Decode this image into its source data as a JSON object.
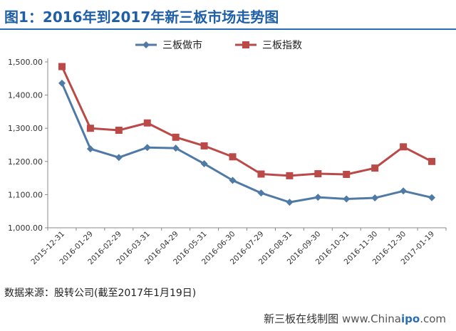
{
  "title": "图1：2016年到2017年新三板市场走势图",
  "source": "数据来源：股转公司(截至2017年1月19日)",
  "footer": {
    "label": "新三板在线制图",
    "domain_prefix": "www.China",
    "domain_bold": "ipo",
    "domain_suffix": ".com"
  },
  "colors": {
    "series_1": "#4f7aa6",
    "series_2": "#b94a48",
    "title": "#1f5fa8"
  },
  "chart_data": {
    "type": "line",
    "categories": [
      "2015-12-31",
      "2016-01-29",
      "2016-02-29",
      "2016-03-31",
      "2016-04-29",
      "2016-05-31",
      "2016-06-30",
      "2016-07-29",
      "2016-08-31",
      "2016-09-30",
      "2016-10-31",
      "2016-11-30",
      "2016-12-30",
      "2017-01-19"
    ],
    "series": [
      {
        "name": "三板做市",
        "marker": "diamond",
        "values": [
          1436,
          1238,
          1212,
          1242,
          1240,
          1193,
          1143,
          1105,
          1077,
          1092,
          1087,
          1090,
          1111,
          1091
        ]
      },
      {
        "name": "三板指数",
        "marker": "square",
        "values": [
          1486,
          1300,
          1294,
          1316,
          1273,
          1247,
          1214,
          1162,
          1157,
          1163,
          1161,
          1180,
          1244,
          1200
        ]
      }
    ],
    "ylim": [
      1000,
      1500
    ],
    "yticks": [
      "1,000.00",
      "1,100.00",
      "1,200.00",
      "1,300.00",
      "1,400.00",
      "1,500.00"
    ],
    "legend": "top",
    "grid": false
  }
}
